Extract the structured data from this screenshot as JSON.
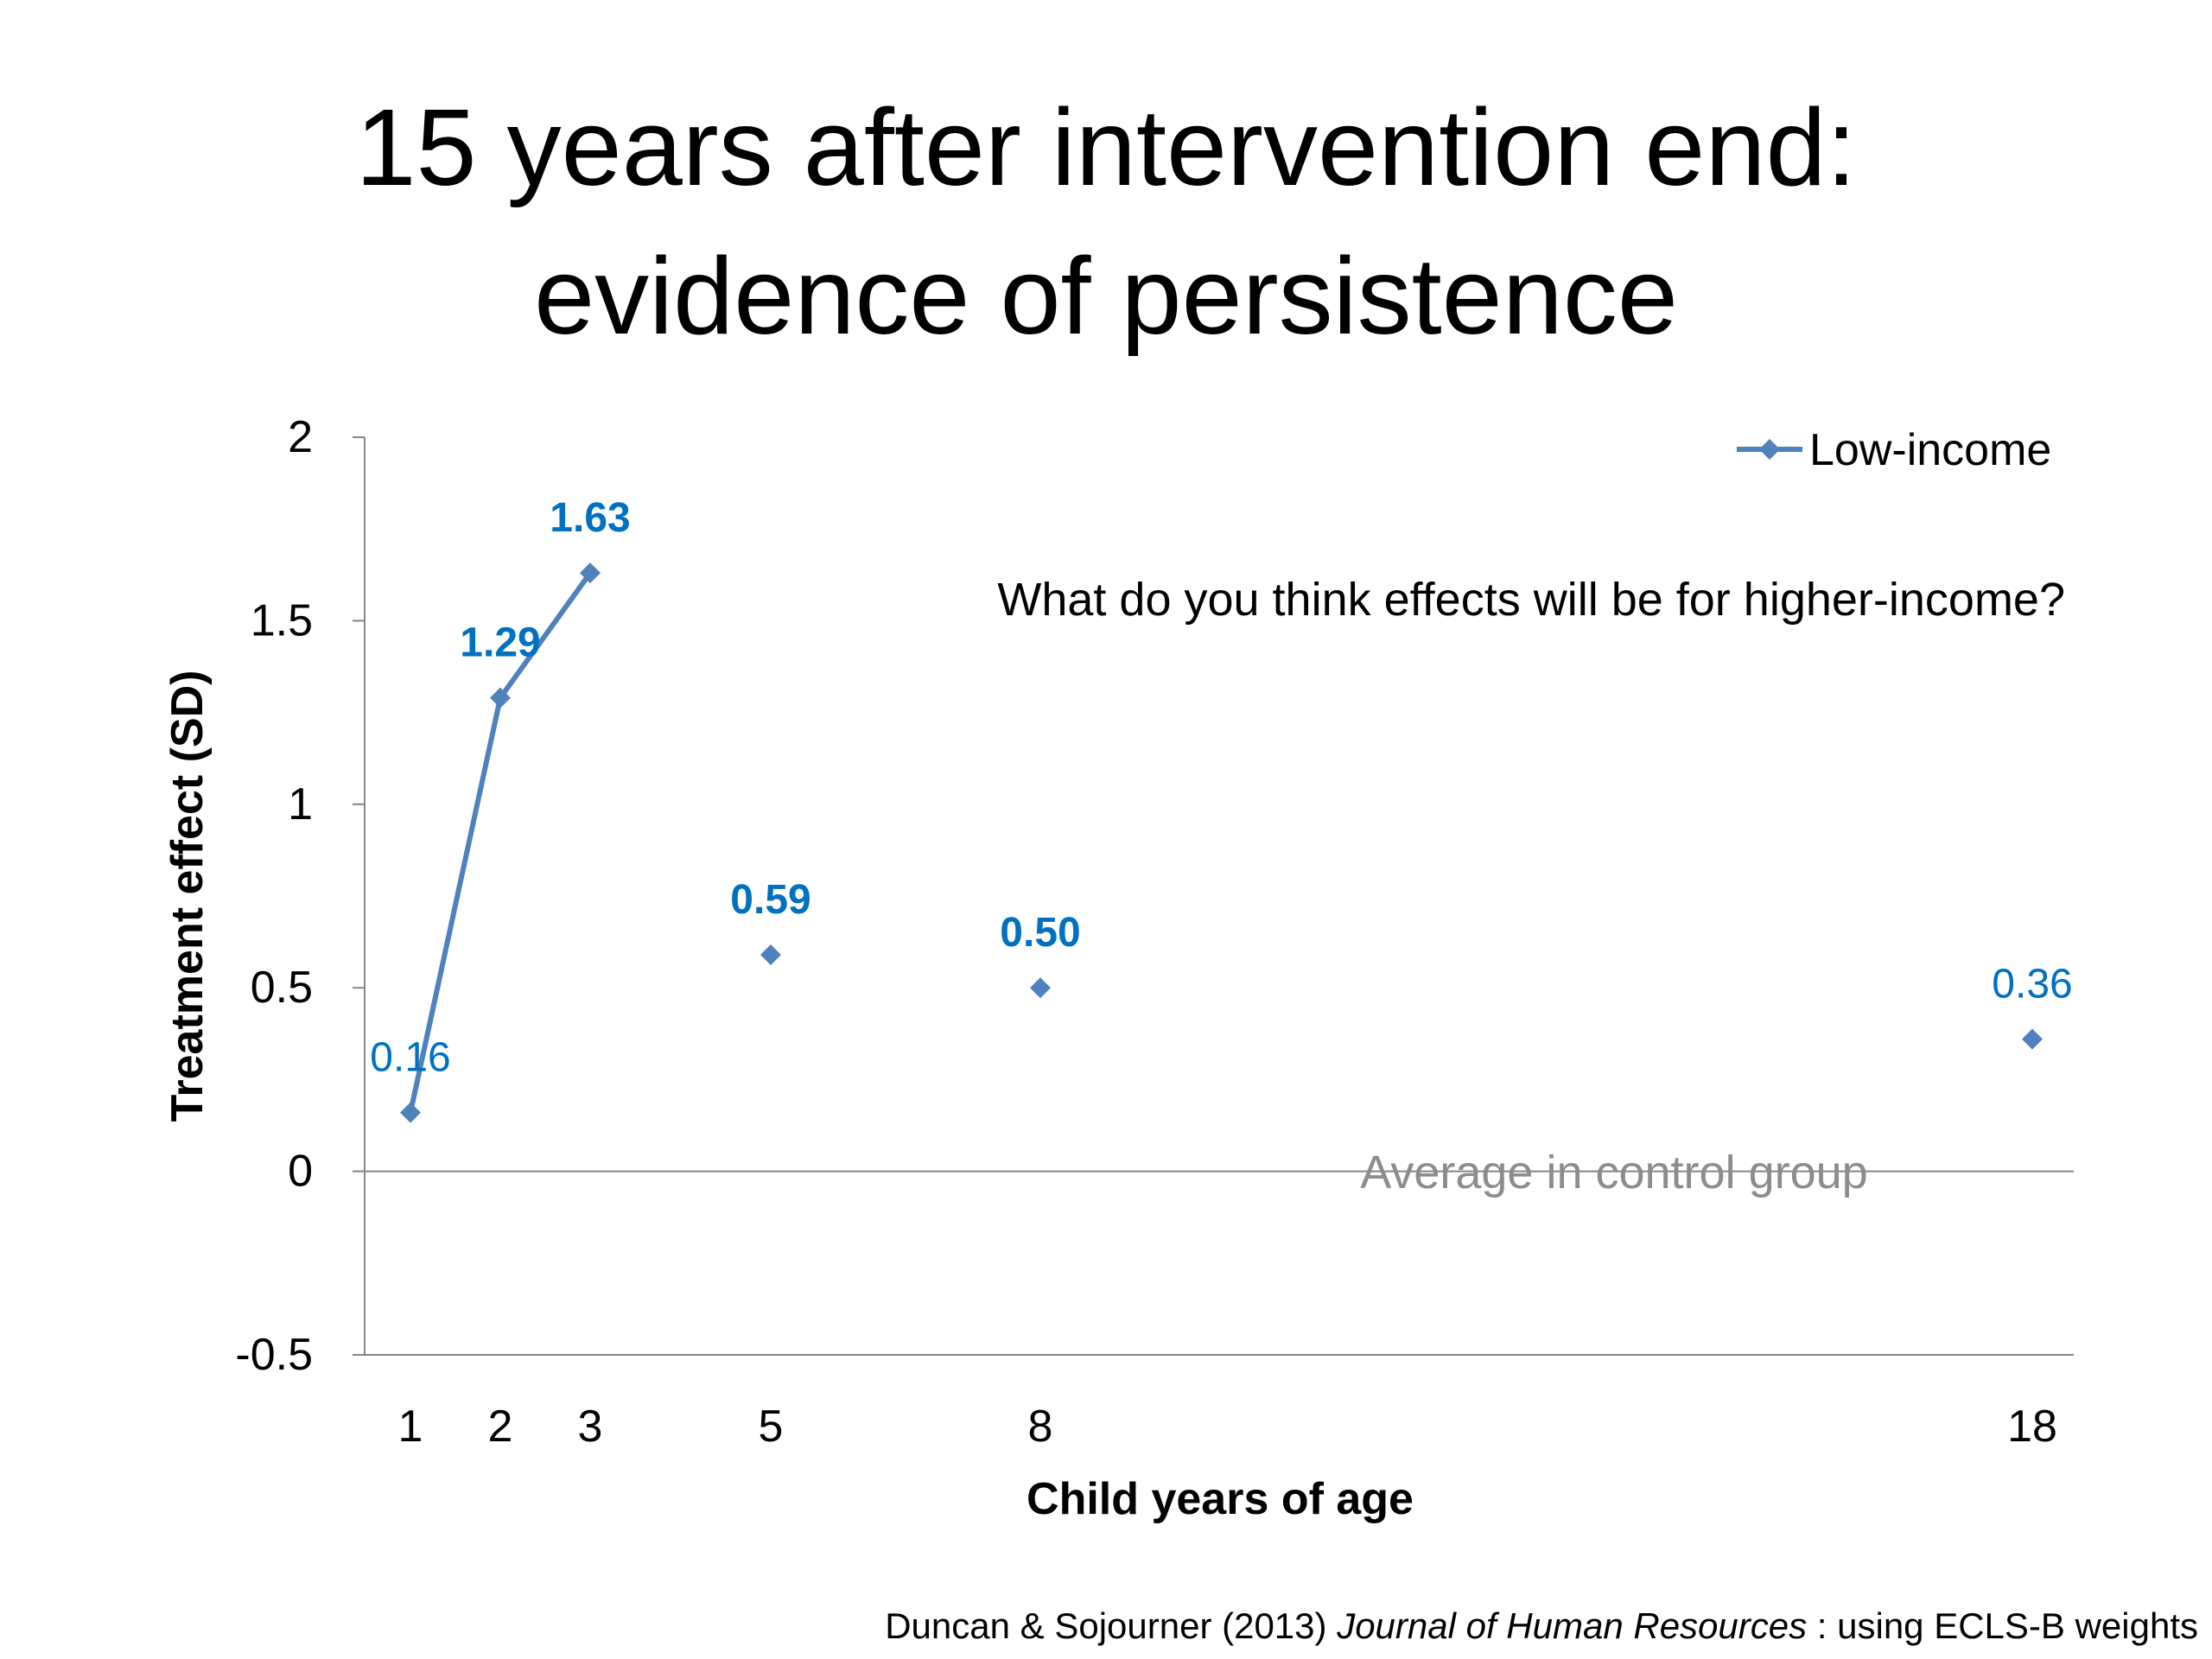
{
  "slide": {
    "title_line1": "15 years after intervention end:",
    "title_line2": "evidence of persistence"
  },
  "citation": {
    "authors": "Duncan & Sojourner (2013) ",
    "journal": "Journal of Human Resources",
    "rest": " : using ECLS-B weights"
  },
  "chart_data": {
    "type": "line",
    "xlabel": "Child years of age",
    "ylabel": "Treatment effect (SD)",
    "ylim": [
      -0.5,
      2
    ],
    "yticks": [
      -0.5,
      0,
      0.5,
      1,
      1.5,
      2
    ],
    "grid": false,
    "legend_position": "top-right",
    "series": [
      {
        "name": "Low-income",
        "color": "#4F81BD",
        "label_color": "#0070C0",
        "points": [
          {
            "x": 1,
            "y": 0.16,
            "label": "0.16",
            "bold": false,
            "connected": true
          },
          {
            "x": 2,
            "y": 1.29,
            "label": "1.29",
            "bold": true,
            "connected": true
          },
          {
            "x": 3,
            "y": 1.63,
            "label": "1.63",
            "bold": true,
            "connected": true
          },
          {
            "x": 5,
            "y": 0.59,
            "label": "0.59",
            "bold": true,
            "connected": false
          },
          {
            "x": 8,
            "y": 0.5,
            "label": "0.50",
            "bold": true,
            "connected": false
          },
          {
            "x": 18,
            "y": 0.36,
            "label": "0.36",
            "bold": false,
            "connected": false
          }
        ]
      }
    ],
    "categories": [
      "1",
      "2",
      "3",
      "5",
      "8",
      "18"
    ],
    "annotations": {
      "question": "What do you think effects will be for higher-income?",
      "zero_line_label": "Average in control group"
    }
  }
}
